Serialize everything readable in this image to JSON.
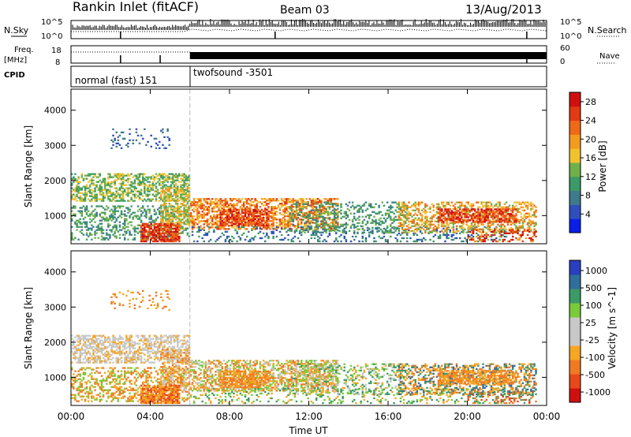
{
  "header": {
    "station": "Rankin Inlet (fitACF)",
    "beam": "Beam 03",
    "date": "13/Aug/2013"
  },
  "top_strips": {
    "nsky_label": "N.Sky",
    "nsky_tick_top": "10^5",
    "nsky_tick_bottom": "10^0",
    "nsearch_label": "N.Search",
    "nsearch_tick_top": "10^5",
    "nsearch_tick_bottom": "10^0",
    "freq_label_1": "Freq.",
    "freq_label_2": "[MHz]",
    "freq_tick_top": "18",
    "freq_tick_bottom": "8",
    "nave_label": "Nave",
    "nave_tick_top": "60",
    "nave_tick_bottom": "0",
    "cpid_label": "CPID",
    "cpid_1": "normal (fast) 151",
    "cpid_2": "twofsound -3501"
  },
  "colors": {
    "power_scale": [
      "#0a1ee6",
      "#2f4fbf",
      "#3f7a8c",
      "#3c9a66",
      "#6fb04a",
      "#f2c12e",
      "#f39b1f",
      "#ef6a18",
      "#e23a12",
      "#d01010"
    ],
    "velocity_scale": [
      "#d01010",
      "#e8481a",
      "#f07a22",
      "#f5a623",
      "#c8c8c8",
      "#c8c8c8",
      "#7acb3a",
      "#3c9a66",
      "#2f6f9a",
      "#2a3fbf"
    ]
  },
  "chart_data": [
    {
      "type": "heatmap",
      "panel": "power",
      "ylabel": "Slant Range [km]",
      "ylim": [
        200,
        4600
      ],
      "yticks": [
        "1000",
        "2000",
        "3000",
        "4000"
      ],
      "xticks": [
        "00:00",
        "04:00",
        "08:00",
        "12:00",
        "16:00",
        "20:00",
        "00:00"
      ],
      "xlim_hours": [
        0,
        24
      ],
      "colorbar_label": "Power [dB]",
      "colorbar_ticks": [
        "4",
        "8",
        "12",
        "16",
        "20",
        "24",
        "28"
      ],
      "colorbar_range": [
        0,
        30
      ]
    },
    {
      "type": "heatmap",
      "panel": "velocity",
      "ylabel": "Slant Range [km]",
      "ylim": [
        200,
        4600
      ],
      "yticks": [
        "1000",
        "2000",
        "3000",
        "4000"
      ],
      "xticks": [
        "00:00",
        "04:00",
        "08:00",
        "12:00",
        "16:00",
        "20:00",
        "00:00"
      ],
      "xlim_hours": [
        0,
        24
      ],
      "xlabel": "Time UT",
      "colorbar_label": "Velocity [m s^-1]",
      "colorbar_ticks": [
        "1000",
        "500",
        "100",
        "25",
        "-25",
        "-100",
        "-500",
        "-1000"
      ]
    }
  ]
}
